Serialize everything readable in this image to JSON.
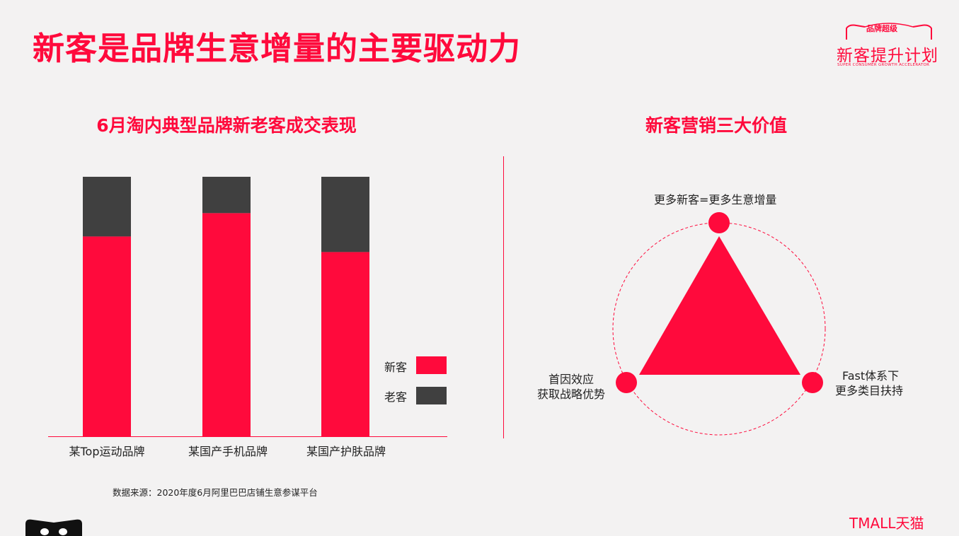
{
  "page_title": "新客是品牌生意增量的主要驱动力",
  "logo": {
    "top": "品牌超级",
    "main": "新客提升计划",
    "sub": "SUPER CONSUMER GROWTH ACCELERATOR"
  },
  "chart_data": {
    "type": "bar",
    "stacked": true,
    "title": "6月淘内典型品牌新老客成交表现",
    "categories": [
      "某Top运动品牌",
      "某国产手机品牌",
      "某国产护肤品牌"
    ],
    "series": [
      {
        "name": "新客",
        "values": [
          77,
          86,
          71
        ],
        "color": "#ff0a3c"
      },
      {
        "name": "老客",
        "values": [
          23,
          14,
          29
        ],
        "color": "#404040"
      }
    ],
    "ylim": [
      0,
      100
    ],
    "grid": false,
    "legend": "bottom-right"
  },
  "source_note": "数据来源：2020年度6月阿里巴巴店铺生意参谋平台",
  "values_diagram": {
    "title": "新客营销三大价值",
    "top_label": "更多新客=更多生意增量",
    "left_label": [
      "首因效应",
      "获取战略优势"
    ],
    "right_label": [
      "Fast体系下",
      "更多类目扶持"
    ],
    "color": "#ff0a3c"
  },
  "brand": "TMALL天猫"
}
